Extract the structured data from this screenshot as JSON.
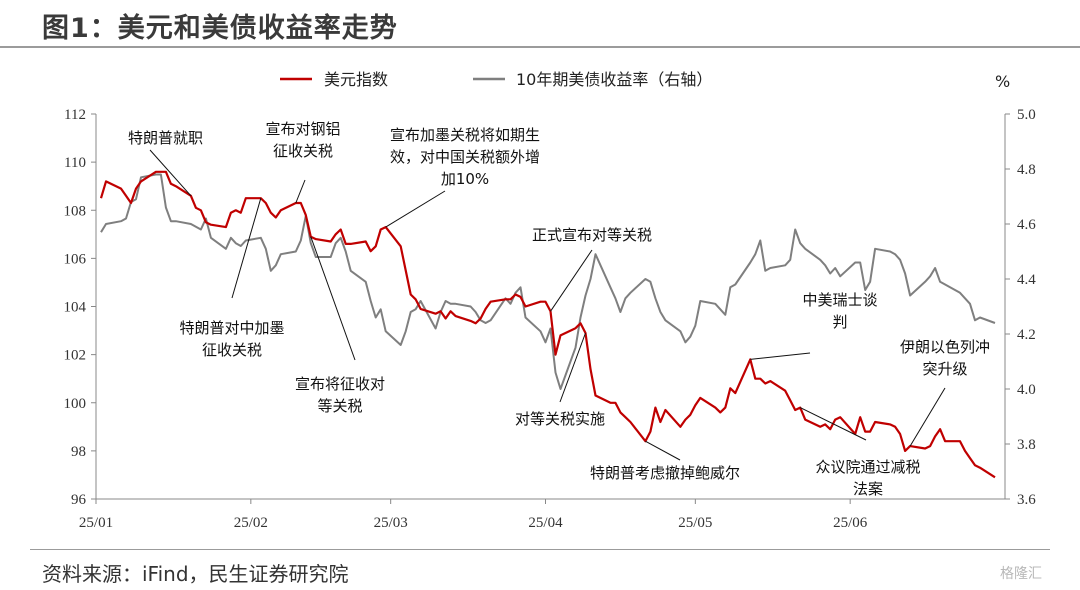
{
  "figure_title": "图1：美元和美债收益率走势",
  "source_note": "资料来源：iFind，民生证券研究院",
  "watermark": "格隆汇",
  "chart_data": {
    "type": "line",
    "x_ticks": [
      "25/01",
      "25/02",
      "25/03",
      "25/04",
      "25/05",
      "25/06"
    ],
    "y_left_ticks": [
      "96",
      "98",
      "100",
      "102",
      "104",
      "106",
      "108",
      "110",
      "112"
    ],
    "y_left_range": [
      96,
      112
    ],
    "y_right_ticks": [
      "3.6",
      "3.8",
      "4.0",
      "4.2",
      "4.4",
      "4.6",
      "4.8",
      "5.0"
    ],
    "y_right_range": [
      3.6,
      5.0
    ],
    "y_right_unit": "%",
    "grid": false,
    "legend_position": "top",
    "series": [
      {
        "name": "美元指数",
        "axis": "left",
        "color": "#c00000",
        "x": [
          "2025-01-02",
          "2025-01-03",
          "2025-01-06",
          "2025-01-07",
          "2025-01-08",
          "2025-01-09",
          "2025-01-10",
          "2025-01-13",
          "2025-01-14",
          "2025-01-15",
          "2025-01-16",
          "2025-01-17",
          "2025-01-20",
          "2025-01-21",
          "2025-01-22",
          "2025-01-23",
          "2025-01-24",
          "2025-01-27",
          "2025-01-28",
          "2025-01-29",
          "2025-01-30",
          "2025-01-31",
          "2025-02-03",
          "2025-02-04",
          "2025-02-05",
          "2025-02-06",
          "2025-02-07",
          "2025-02-10",
          "2025-02-11",
          "2025-02-12",
          "2025-02-13",
          "2025-02-14",
          "2025-02-17",
          "2025-02-18",
          "2025-02-19",
          "2025-02-20",
          "2025-02-21",
          "2025-02-24",
          "2025-02-25",
          "2025-02-26",
          "2025-02-27",
          "2025-02-28",
          "2025-03-03",
          "2025-03-04",
          "2025-03-05",
          "2025-03-06",
          "2025-03-07",
          "2025-03-10",
          "2025-03-11",
          "2025-03-12",
          "2025-03-13",
          "2025-03-14",
          "2025-03-17",
          "2025-03-18",
          "2025-03-19",
          "2025-03-20",
          "2025-03-21",
          "2025-03-24",
          "2025-03-25",
          "2025-03-26",
          "2025-03-27",
          "2025-03-28",
          "2025-03-31",
          "2025-04-01",
          "2025-04-02",
          "2025-04-03",
          "2025-04-04",
          "2025-04-07",
          "2025-04-08",
          "2025-04-09",
          "2025-04-10",
          "2025-04-11",
          "2025-04-14",
          "2025-04-15",
          "2025-04-16",
          "2025-04-17",
          "2025-04-18",
          "2025-04-21",
          "2025-04-22",
          "2025-04-23",
          "2025-04-24",
          "2025-04-25",
          "2025-04-28",
          "2025-04-29",
          "2025-04-30",
          "2025-05-01",
          "2025-05-02",
          "2025-05-05",
          "2025-05-06",
          "2025-05-07",
          "2025-05-08",
          "2025-05-09",
          "2025-05-12",
          "2025-05-13",
          "2025-05-14",
          "2025-05-15",
          "2025-05-16",
          "2025-05-19",
          "2025-05-20",
          "2025-05-21",
          "2025-05-22",
          "2025-05-23",
          "2025-05-26",
          "2025-05-27",
          "2025-05-28",
          "2025-05-29",
          "2025-05-30",
          "2025-06-02",
          "2025-06-03",
          "2025-06-04",
          "2025-06-05",
          "2025-06-06",
          "2025-06-09",
          "2025-06-10",
          "2025-06-11",
          "2025-06-12",
          "2025-06-13",
          "2025-06-16",
          "2025-06-17",
          "2025-06-18",
          "2025-06-19",
          "2025-06-20",
          "2025-06-23",
          "2025-06-24",
          "2025-06-25",
          "2025-06-26",
          "2025-06-27",
          "2025-06-30"
        ],
        "values": [
          108.5,
          109.2,
          108.9,
          108.6,
          108.3,
          108.9,
          109.2,
          109.6,
          109.6,
          109.6,
          109.1,
          109.0,
          108.6,
          108.1,
          108.0,
          107.5,
          107.4,
          107.3,
          107.9,
          108.0,
          107.9,
          108.5,
          108.5,
          108.3,
          107.9,
          107.7,
          108.0,
          108.3,
          108.3,
          107.8,
          106.9,
          106.8,
          106.7,
          107.0,
          107.2,
          106.6,
          106.6,
          106.7,
          106.3,
          106.5,
          107.2,
          107.3,
          106.5,
          105.5,
          104.5,
          104.3,
          103.9,
          103.7,
          103.8,
          103.5,
          103.8,
          103.6,
          103.4,
          103.3,
          103.5,
          103.9,
          104.2,
          104.3,
          104.3,
          104.5,
          104.4,
          104.0,
          104.2,
          104.2,
          103.8,
          102.0,
          102.8,
          103.1,
          103.3,
          102.9,
          101.4,
          100.3,
          100.0,
          100.0,
          99.6,
          99.4,
          99.2,
          98.4,
          98.8,
          99.8,
          99.2,
          99.7,
          99.0,
          99.3,
          99.5,
          99.9,
          100.2,
          99.8,
          99.6,
          99.8,
          100.6,
          100.4,
          101.8,
          101.0,
          101.0,
          100.8,
          100.9,
          100.5,
          100.1,
          99.7,
          99.8,
          99.3,
          99.0,
          99.1,
          98.9,
          99.3,
          99.4,
          98.7,
          99.4,
          98.8,
          98.8,
          99.2,
          99.1,
          99.0,
          98.7,
          98.0,
          98.2,
          98.1,
          98.2,
          98.6,
          98.9,
          98.4,
          98.4,
          98.0,
          97.7,
          97.4,
          97.3,
          96.9
        ]
      },
      {
        "name": "10年期美债收益率（右轴）",
        "axis": "right",
        "color": "#7f7f7f",
        "x": [
          "2025-01-02",
          "2025-01-03",
          "2025-01-06",
          "2025-01-07",
          "2025-01-08",
          "2025-01-09",
          "2025-01-10",
          "2025-01-13",
          "2025-01-14",
          "2025-01-15",
          "2025-01-16",
          "2025-01-17",
          "2025-01-20",
          "2025-01-21",
          "2025-01-22",
          "2025-01-23",
          "2025-01-24",
          "2025-01-27",
          "2025-01-28",
          "2025-01-29",
          "2025-01-30",
          "2025-01-31",
          "2025-02-03",
          "2025-02-04",
          "2025-02-05",
          "2025-02-06",
          "2025-02-07",
          "2025-02-10",
          "2025-02-11",
          "2025-02-12",
          "2025-02-13",
          "2025-02-14",
          "2025-02-17",
          "2025-02-18",
          "2025-02-19",
          "2025-02-20",
          "2025-02-21",
          "2025-02-24",
          "2025-02-25",
          "2025-02-26",
          "2025-02-27",
          "2025-02-28",
          "2025-03-03",
          "2025-03-04",
          "2025-03-05",
          "2025-03-06",
          "2025-03-07",
          "2025-03-10",
          "2025-03-11",
          "2025-03-12",
          "2025-03-13",
          "2025-03-14",
          "2025-03-17",
          "2025-03-18",
          "2025-03-19",
          "2025-03-20",
          "2025-03-21",
          "2025-03-24",
          "2025-03-25",
          "2025-03-26",
          "2025-03-27",
          "2025-03-28",
          "2025-03-31",
          "2025-04-01",
          "2025-04-02",
          "2025-04-03",
          "2025-04-04",
          "2025-04-07",
          "2025-04-08",
          "2025-04-09",
          "2025-04-10",
          "2025-04-11",
          "2025-04-14",
          "2025-04-15",
          "2025-04-16",
          "2025-04-17",
          "2025-04-18",
          "2025-04-21",
          "2025-04-22",
          "2025-04-23",
          "2025-04-24",
          "2025-04-25",
          "2025-04-28",
          "2025-04-29",
          "2025-04-30",
          "2025-05-01",
          "2025-05-02",
          "2025-05-05",
          "2025-05-06",
          "2025-05-07",
          "2025-05-08",
          "2025-05-09",
          "2025-05-12",
          "2025-05-13",
          "2025-05-14",
          "2025-05-15",
          "2025-05-16",
          "2025-05-19",
          "2025-05-20",
          "2025-05-21",
          "2025-05-22",
          "2025-05-23",
          "2025-05-26",
          "2025-05-27",
          "2025-05-28",
          "2025-05-29",
          "2025-05-30",
          "2025-06-02",
          "2025-06-03",
          "2025-06-04",
          "2025-06-05",
          "2025-06-06",
          "2025-06-09",
          "2025-06-10",
          "2025-06-11",
          "2025-06-12",
          "2025-06-13",
          "2025-06-16",
          "2025-06-17",
          "2025-06-18",
          "2025-06-19",
          "2025-06-20",
          "2025-06-23",
          "2025-06-24",
          "2025-06-25",
          "2025-06-26",
          "2025-06-27",
          "2025-06-30"
        ],
        "values": [
          4.57,
          4.6,
          4.61,
          4.62,
          4.68,
          4.69,
          4.77,
          4.78,
          4.78,
          4.66,
          4.61,
          4.61,
          4.6,
          4.59,
          4.58,
          4.62,
          4.55,
          4.51,
          4.55,
          4.53,
          4.52,
          4.54,
          4.55,
          4.51,
          4.43,
          4.45,
          4.49,
          4.5,
          4.54,
          4.63,
          4.53,
          4.48,
          4.48,
          4.53,
          4.55,
          4.5,
          4.43,
          4.39,
          4.32,
          4.26,
          4.29,
          4.21,
          4.16,
          4.21,
          4.28,
          4.29,
          4.32,
          4.22,
          4.28,
          4.32,
          4.31,
          4.31,
          4.3,
          4.28,
          4.25,
          4.24,
          4.25,
          4.33,
          4.31,
          4.35,
          4.37,
          4.26,
          4.21,
          4.17,
          4.22,
          4.06,
          4.0,
          4.15,
          4.26,
          4.34,
          4.4,
          4.49,
          4.37,
          4.33,
          4.28,
          4.33,
          4.35,
          4.4,
          4.39,
          4.33,
          4.28,
          4.25,
          4.21,
          4.17,
          4.19,
          4.23,
          4.32,
          4.31,
          4.29,
          4.27,
          4.37,
          4.38,
          4.46,
          4.49,
          4.54,
          4.43,
          4.44,
          4.45,
          4.47,
          4.58,
          4.53,
          4.51,
          4.47,
          4.45,
          4.42,
          4.44,
          4.41,
          4.46,
          4.46,
          4.36,
          4.39,
          4.51,
          4.5,
          4.49,
          4.47,
          4.42,
          4.34,
          4.39,
          4.41,
          4.44,
          4.39,
          4.38,
          4.35,
          4.33,
          4.31,
          4.25,
          4.26,
          4.24
        ]
      }
    ],
    "annotations": [
      {
        "lines": [
          "特朗普就职"
        ],
        "date": "2025-01-20",
        "series": 0
      },
      {
        "lines": [
          "宣布对钢铝",
          "征收关税"
        ],
        "date": "2025-02-10",
        "series": 0
      },
      {
        "lines": [
          "宣布加墨关税将如期生",
          "效，对中国关税额外增",
          "加10%"
        ],
        "date": "2025-02-28",
        "series": 0
      },
      {
        "lines": [
          "特朗普对中加墨",
          "征收关税"
        ],
        "date": "2025-02-03",
        "series": 0
      },
      {
        "lines": [
          "宣布将征收对",
          "等关税"
        ],
        "date": "2025-02-13",
        "series": 0
      },
      {
        "lines": [
          "正式宣布对等关税"
        ],
        "date": "2025-04-02",
        "series": 0
      },
      {
        "lines": [
          "对等关税实施"
        ],
        "date": "2025-04-09",
        "series": 0
      },
      {
        "lines": [
          "特朗普考虑撤掉鲍威尔"
        ],
        "date": "2025-04-21",
        "series": 0
      },
      {
        "lines": [
          "中美瑞士谈",
          "判"
        ],
        "date": "2025-05-12",
        "series": 0
      },
      {
        "lines": [
          "众议院通过减税",
          "法案"
        ],
        "date": "2025-05-22",
        "series": 0
      },
      {
        "lines": [
          "伊朗以色列冲",
          "突升级"
        ],
        "date": "2025-06-13",
        "series": 0
      }
    ]
  }
}
